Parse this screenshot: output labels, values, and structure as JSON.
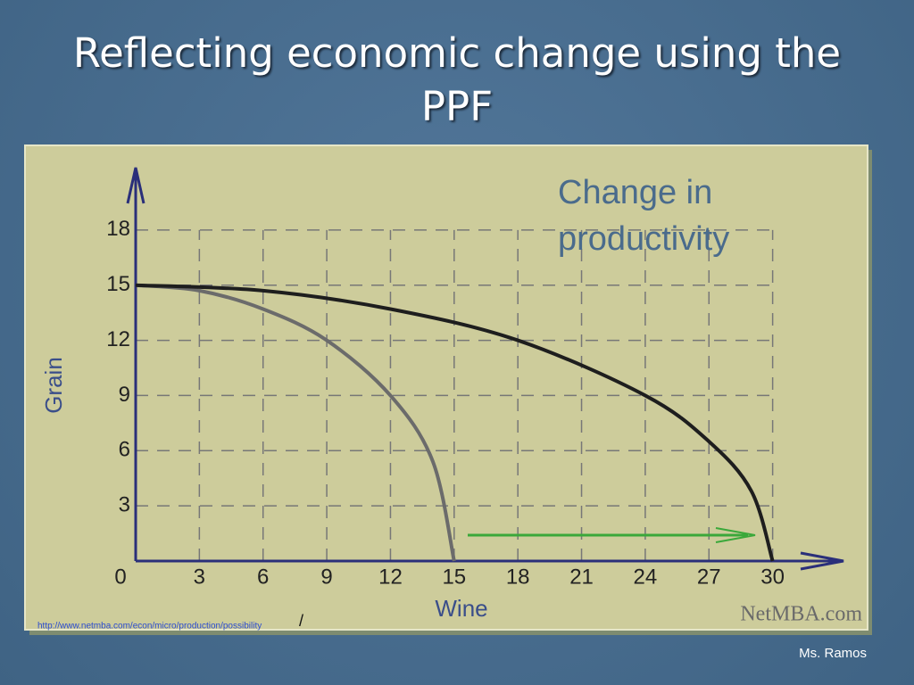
{
  "slide": {
    "title": "Reflecting economic change using the PPF",
    "source_url": "http://www.netmba.com/econ/micro/production/possibility",
    "source_url_end": "/",
    "watermark": "NetMBA.com",
    "author": "Ms. Ramos"
  },
  "chart_data": {
    "type": "line",
    "annotation": "Change in productivity",
    "x_label": "Wine",
    "y_label": "Grain",
    "xlim": [
      0,
      33
    ],
    "ylim": [
      0,
      21
    ],
    "xticks": [
      0,
      3,
      6,
      9,
      12,
      15,
      18,
      21,
      24,
      27,
      30
    ],
    "yticks": [
      3,
      6,
      9,
      12,
      15,
      18
    ],
    "grid": true,
    "series": [
      {
        "color": "#6b6b6b",
        "x": [
          0,
          3,
          6,
          9,
          12,
          14,
          15
        ],
        "values": [
          15,
          14.7,
          13.7,
          12,
          9,
          5.4,
          0
        ]
      },
      {
        "color": "#1e1e1e",
        "x": [
          0,
          6,
          12,
          18,
          24,
          27,
          29,
          30
        ],
        "values": [
          15,
          14.7,
          13.7,
          12,
          9,
          6.5,
          3.8,
          0
        ]
      }
    ]
  }
}
